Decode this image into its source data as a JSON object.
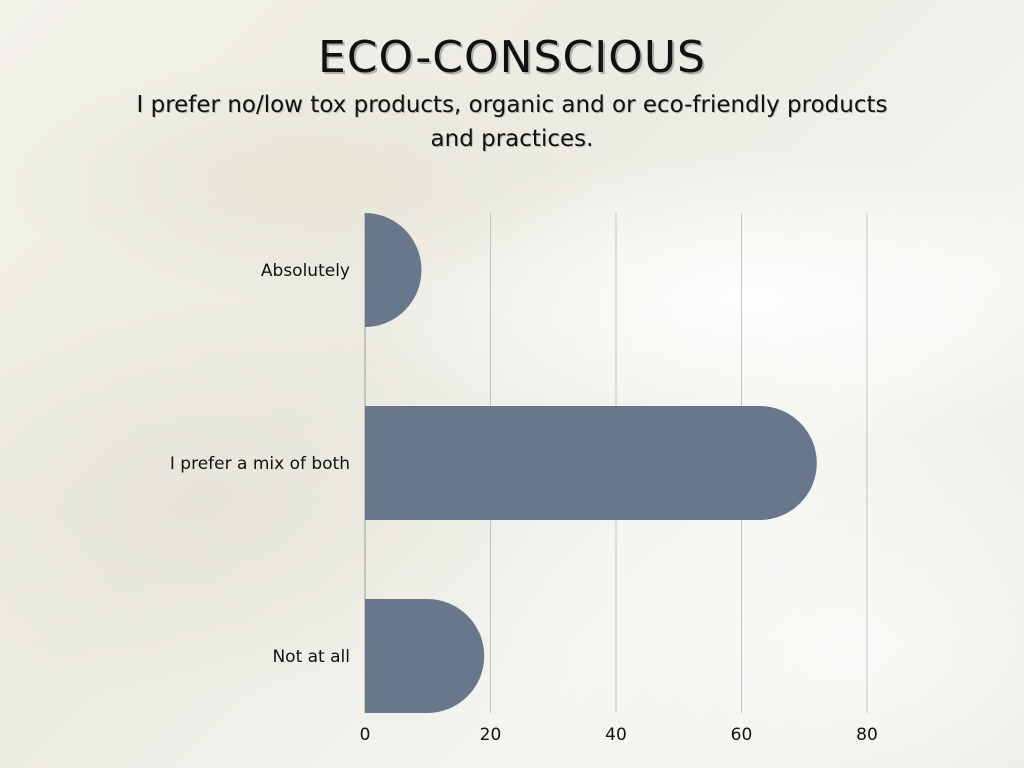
{
  "chart_data": {
    "type": "bar",
    "orientation": "horizontal",
    "title": "ECO-CONSCIOUS",
    "subtitle": "I prefer no/low tox products, organic and or eco-friendly products and practices.",
    "categories": [
      "Absolutely",
      "I prefer a mix of both",
      "Not at all"
    ],
    "values": [
      9,
      72,
      19
    ],
    "xlim": [
      0,
      80
    ],
    "xticks": [
      0,
      20,
      40,
      60,
      80
    ],
    "grid": true,
    "legend": "none",
    "bar_color": "#687789"
  }
}
